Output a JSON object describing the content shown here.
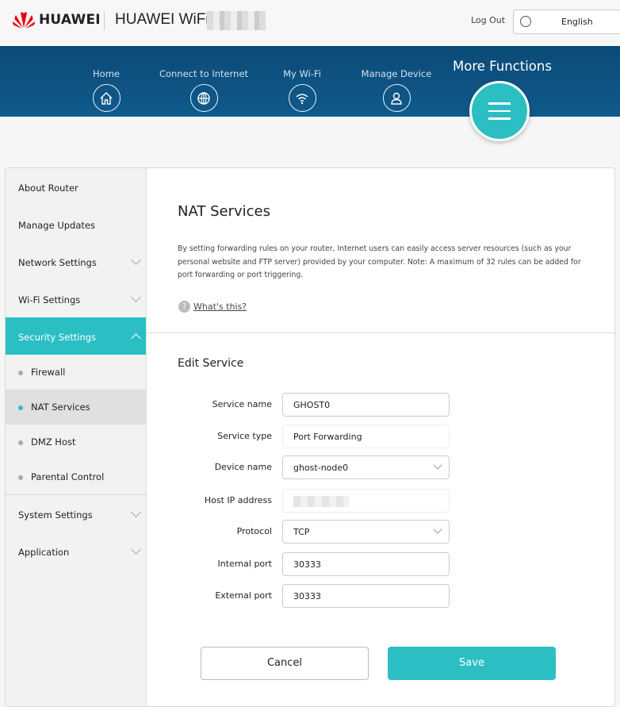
{
  "header": {
    "brand": "HUAWEI",
    "product": "HUAWEI WiFi",
    "logout": "Log Out",
    "language": "English"
  },
  "nav": {
    "items": [
      {
        "label": "Home",
        "icon": "home-icon"
      },
      {
        "label": "Connect to Internet",
        "icon": "globe-icon"
      },
      {
        "label": "My Wi-Fi",
        "icon": "wifi-icon"
      },
      {
        "label": "Manage Device",
        "icon": "user-icon"
      }
    ],
    "active": "More Functions"
  },
  "sidebar": {
    "items": [
      "About Router",
      "Manage Updates",
      "Network Settings",
      "Wi-Fi Settings",
      "Security Settings"
    ],
    "sub": [
      "Firewall",
      "NAT Services",
      "DMZ Host",
      "Parental Control"
    ],
    "after": [
      "System Settings",
      "Application"
    ]
  },
  "main": {
    "title": "NAT Services",
    "description": "By setting forwarding rules on your router, Internet users can easily access server resources (such as your personal website and FTP server) provided by your computer. Note: A maximum of 32 rules can be added for port forwarding or port triggering.",
    "help": "What's this?",
    "section": "Edit Service",
    "fields": [
      {
        "label": "Service name",
        "value": "GHOST0"
      },
      {
        "label": "Service type",
        "value": "Port Forwarding"
      },
      {
        "label": "Device name",
        "value": "ghost-node0"
      },
      {
        "label": "Host IP address",
        "value": ""
      },
      {
        "label": "Protocol",
        "value": "TCP"
      },
      {
        "label": "Internal port",
        "value": "30333"
      },
      {
        "label": "External port",
        "value": "30333"
      }
    ],
    "cancel": "Cancel",
    "save": "Save"
  },
  "colors": {
    "accent": "#2bbfc4",
    "nav": "#0e5283",
    "brand": "#e60012"
  }
}
